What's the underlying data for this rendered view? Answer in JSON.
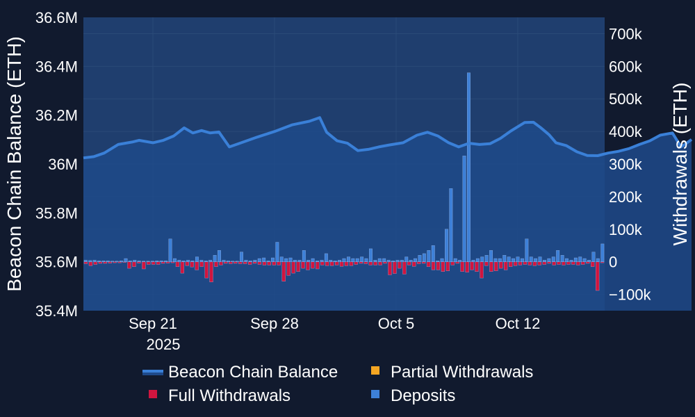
{
  "chart_data": {
    "type": "bar+area",
    "x_start": "2025-09-17",
    "x_end": "2025-10-17",
    "x_tick_labels": [
      "Sep 21",
      "Sep 28",
      "Oct 5",
      "Oct 12"
    ],
    "x_tick_dates": [
      "2025-09-21",
      "2025-09-28",
      "2025-10-05",
      "2025-10-12"
    ],
    "x_year_label": "2025",
    "left_axis": {
      "title": "Beacon Chain Balance (ETH)",
      "range": [
        35400000,
        36600000
      ],
      "ticks": [
        35400000,
        35600000,
        35800000,
        36000000,
        36200000,
        36400000,
        36600000
      ],
      "tick_labels": [
        "35.4M",
        "35.6M",
        "35.8M",
        "36M",
        "36.2M",
        "36.4M",
        "36.6M"
      ]
    },
    "right_axis": {
      "title": "Withdrawals (ETH)",
      "range": [
        -150000,
        750000
      ],
      "ticks": [
        -100000,
        0,
        100000,
        200000,
        300000,
        400000,
        500000,
        600000,
        700000
      ],
      "tick_labels": [
        "−100k",
        "0",
        "100k",
        "200k",
        "300k",
        "400k",
        "500k",
        "600k",
        "700k"
      ]
    },
    "colors": {
      "background": "#111a2e",
      "plot_area": "#1f3e6e",
      "balance_line": "#3a80d8",
      "full_withdrawals": "#d0153f",
      "partial_withdrawals": "#f5a623",
      "deposits": "#3d80d8",
      "grid": "#2a4a78"
    },
    "series": [
      {
        "name": "Beacon Chain Balance",
        "axis": "left",
        "points": [
          [
            0,
            36025000
          ],
          [
            0.6,
            36030000
          ],
          [
            1.2,
            36045000
          ],
          [
            2,
            36080000
          ],
          [
            2.8,
            36090000
          ],
          [
            3.2,
            36097000
          ],
          [
            4,
            36087000
          ],
          [
            4.6,
            36097000
          ],
          [
            5.2,
            36115000
          ],
          [
            5.8,
            36148000
          ],
          [
            6.3,
            36127000
          ],
          [
            6.8,
            36137000
          ],
          [
            7.3,
            36127000
          ],
          [
            7.8,
            36131000
          ],
          [
            8.4,
            36070000
          ],
          [
            9,
            36085000
          ],
          [
            10,
            36110000
          ],
          [
            11,
            36133000
          ],
          [
            12,
            36160000
          ],
          [
            13,
            36175000
          ],
          [
            13.6,
            36190000
          ],
          [
            14,
            36130000
          ],
          [
            14.6,
            36095000
          ],
          [
            15.2,
            36085000
          ],
          [
            15.8,
            36055000
          ],
          [
            16.4,
            36060000
          ],
          [
            17,
            36070000
          ],
          [
            17.6,
            36078000
          ],
          [
            18.4,
            36087000
          ],
          [
            19.2,
            36118000
          ],
          [
            19.8,
            36130000
          ],
          [
            20.4,
            36115000
          ],
          [
            21,
            36088000
          ],
          [
            21.6,
            36070000
          ],
          [
            22.2,
            36085000
          ],
          [
            22.8,
            36080000
          ],
          [
            23.4,
            36083000
          ],
          [
            24,
            36105000
          ],
          [
            24.6,
            36135000
          ],
          [
            25.4,
            36170000
          ],
          [
            25.9,
            36171000
          ],
          [
            26.3,
            36150000
          ],
          [
            26.8,
            36120000
          ],
          [
            27.2,
            36087000
          ],
          [
            27.8,
            36075000
          ],
          [
            28.4,
            36050000
          ],
          [
            29,
            36035000
          ],
          [
            29.6,
            36034000
          ],
          [
            30.2,
            36045000
          ],
          [
            30.8,
            36052000
          ],
          [
            31.4,
            36063000
          ],
          [
            32,
            36080000
          ],
          [
            32.6,
            36095000
          ],
          [
            33.2,
            36118000
          ],
          [
            33.9,
            36127000
          ],
          [
            34.4,
            36070000
          ],
          [
            34.8,
            36090000
          ],
          [
            35.0,
            36100000
          ]
        ]
      },
      {
        "name": "Full Withdrawals",
        "axis": "right",
        "values": [
          -6000,
          -12000,
          -8000,
          -5000,
          -5000,
          -4000,
          -3000,
          -3000,
          -2000,
          -20000,
          -15000,
          -4000,
          -22000,
          -8000,
          -8000,
          -8000,
          -5000,
          -4000,
          -3000,
          -15000,
          -35000,
          -12000,
          -16000,
          -25000,
          -15000,
          -50000,
          -62000,
          -15000,
          -10000,
          -5000,
          -6000,
          -5000,
          -6000,
          -6000,
          -8000,
          -5000,
          -8000,
          -10000,
          -10000,
          -10000,
          -10000,
          -60000,
          -42000,
          -35000,
          -30000,
          -20000,
          -25000,
          -20000,
          -22000,
          -10000,
          -12000,
          -12000,
          -10000,
          -14000,
          -12000,
          -12000,
          -8000,
          -5000,
          -6000,
          -10000,
          -10000,
          -10000,
          -5000,
          -40000,
          -36000,
          -20000,
          -38000,
          -10000,
          -14000,
          -6000,
          -5000,
          -15000,
          -25000,
          -25000,
          -30000,
          -28000,
          -10000,
          -5000,
          -30000,
          -32000,
          -25000,
          -30000,
          -50000,
          -12000,
          -30000,
          -28000,
          -20000,
          -25000,
          -15000,
          -12000,
          -10000,
          -8000,
          -10000,
          -12000,
          -10000,
          -8000,
          -5000,
          -10000,
          -8000,
          -10000,
          -8000,
          -8000,
          -10000,
          -8000,
          -5000,
          -15000,
          -88000,
          -3000
        ]
      },
      {
        "name": "Partial Withdrawals",
        "axis": "right",
        "values": []
      },
      {
        "name": "Deposits",
        "axis": "right",
        "values": [
          5000,
          4000,
          5000,
          3000,
          3000,
          3000,
          2000,
          2000,
          3000,
          10000,
          3000,
          5000,
          3000,
          2000,
          2000,
          2000,
          3000,
          3000,
          3000,
          70000,
          10000,
          5000,
          3000,
          5000,
          3000,
          15000,
          5000,
          3000,
          5000,
          20000,
          35000,
          5000,
          3000,
          2000,
          2000,
          30000,
          5000,
          3000,
          5000,
          10000,
          12000,
          3000,
          12000,
          60000,
          15000,
          10000,
          12000,
          5000,
          5000,
          35000,
          5000,
          10000,
          3000,
          5000,
          25000,
          5000,
          3000,
          5000,
          10000,
          15000,
          10000,
          10000,
          15000,
          10000,
          40000,
          5000,
          10000,
          10000,
          5000,
          3000,
          5000,
          5000,
          15000,
          5000,
          10000,
          20000,
          25000,
          35000,
          50000,
          3000,
          10000,
          100000,
          225000,
          10000,
          5000,
          325000,
          580000,
          5000,
          10000,
          15000,
          20000,
          35000,
          10000,
          10000,
          20000,
          15000,
          10000,
          15000,
          10000,
          70000,
          15000,
          10000,
          15000,
          5000,
          10000,
          15000,
          35000,
          20000,
          10000,
          5000,
          12000,
          15000,
          10000,
          5000,
          30000,
          10000,
          55000
        ]
      }
    ],
    "legend": [
      {
        "name": "Beacon Chain Balance",
        "symbol": "line"
      },
      {
        "name": "Partial Withdrawals",
        "symbol": "square"
      },
      {
        "name": "Full Withdrawals",
        "symbol": "square"
      },
      {
        "name": "Deposits",
        "symbol": "square"
      }
    ],
    "legend_position": "bottom-center"
  }
}
